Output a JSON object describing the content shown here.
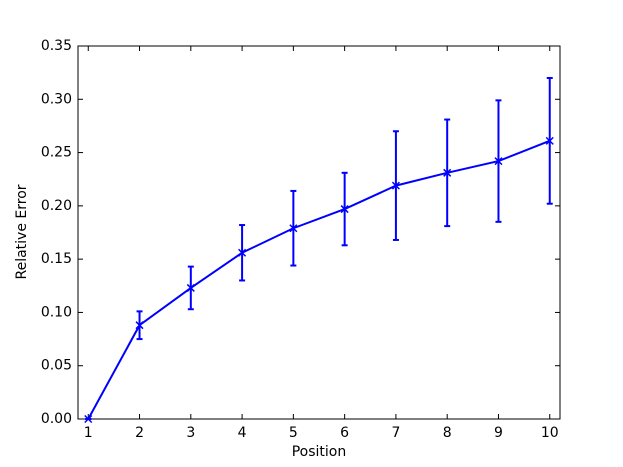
{
  "chart_data": {
    "type": "errorbar-line",
    "x_label": "Position",
    "y_label": "Relative Error",
    "x": [
      1,
      2,
      3,
      4,
      5,
      6,
      7,
      8,
      9,
      10
    ],
    "values": [
      0.0,
      0.088,
      0.123,
      0.156,
      0.179,
      0.197,
      0.219,
      0.231,
      0.242,
      0.261
    ],
    "errors": [
      0.0,
      0.013,
      0.02,
      0.026,
      0.035,
      0.034,
      0.051,
      0.05,
      0.057,
      0.059
    ],
    "color": "#0000ff",
    "xlim": [
      0.8,
      10.2
    ],
    "xticks": [
      1,
      2,
      3,
      4,
      5,
      6,
      7,
      8,
      9,
      10
    ],
    "ylim": [
      0,
      0.35
    ],
    "yticks": [
      {
        "value": 0,
        "label": "0.00"
      },
      {
        "value": 0.05,
        "label": "0.05"
      },
      {
        "value": 0.1,
        "label": "0.10"
      },
      {
        "value": 0.15,
        "label": "0.15"
      },
      {
        "value": 0.2,
        "label": "0.20"
      },
      {
        "value": 0.25,
        "label": "0.25"
      },
      {
        "value": 0.3,
        "label": "0.30"
      },
      {
        "value": 0.35,
        "label": "0.35"
      }
    ]
  }
}
